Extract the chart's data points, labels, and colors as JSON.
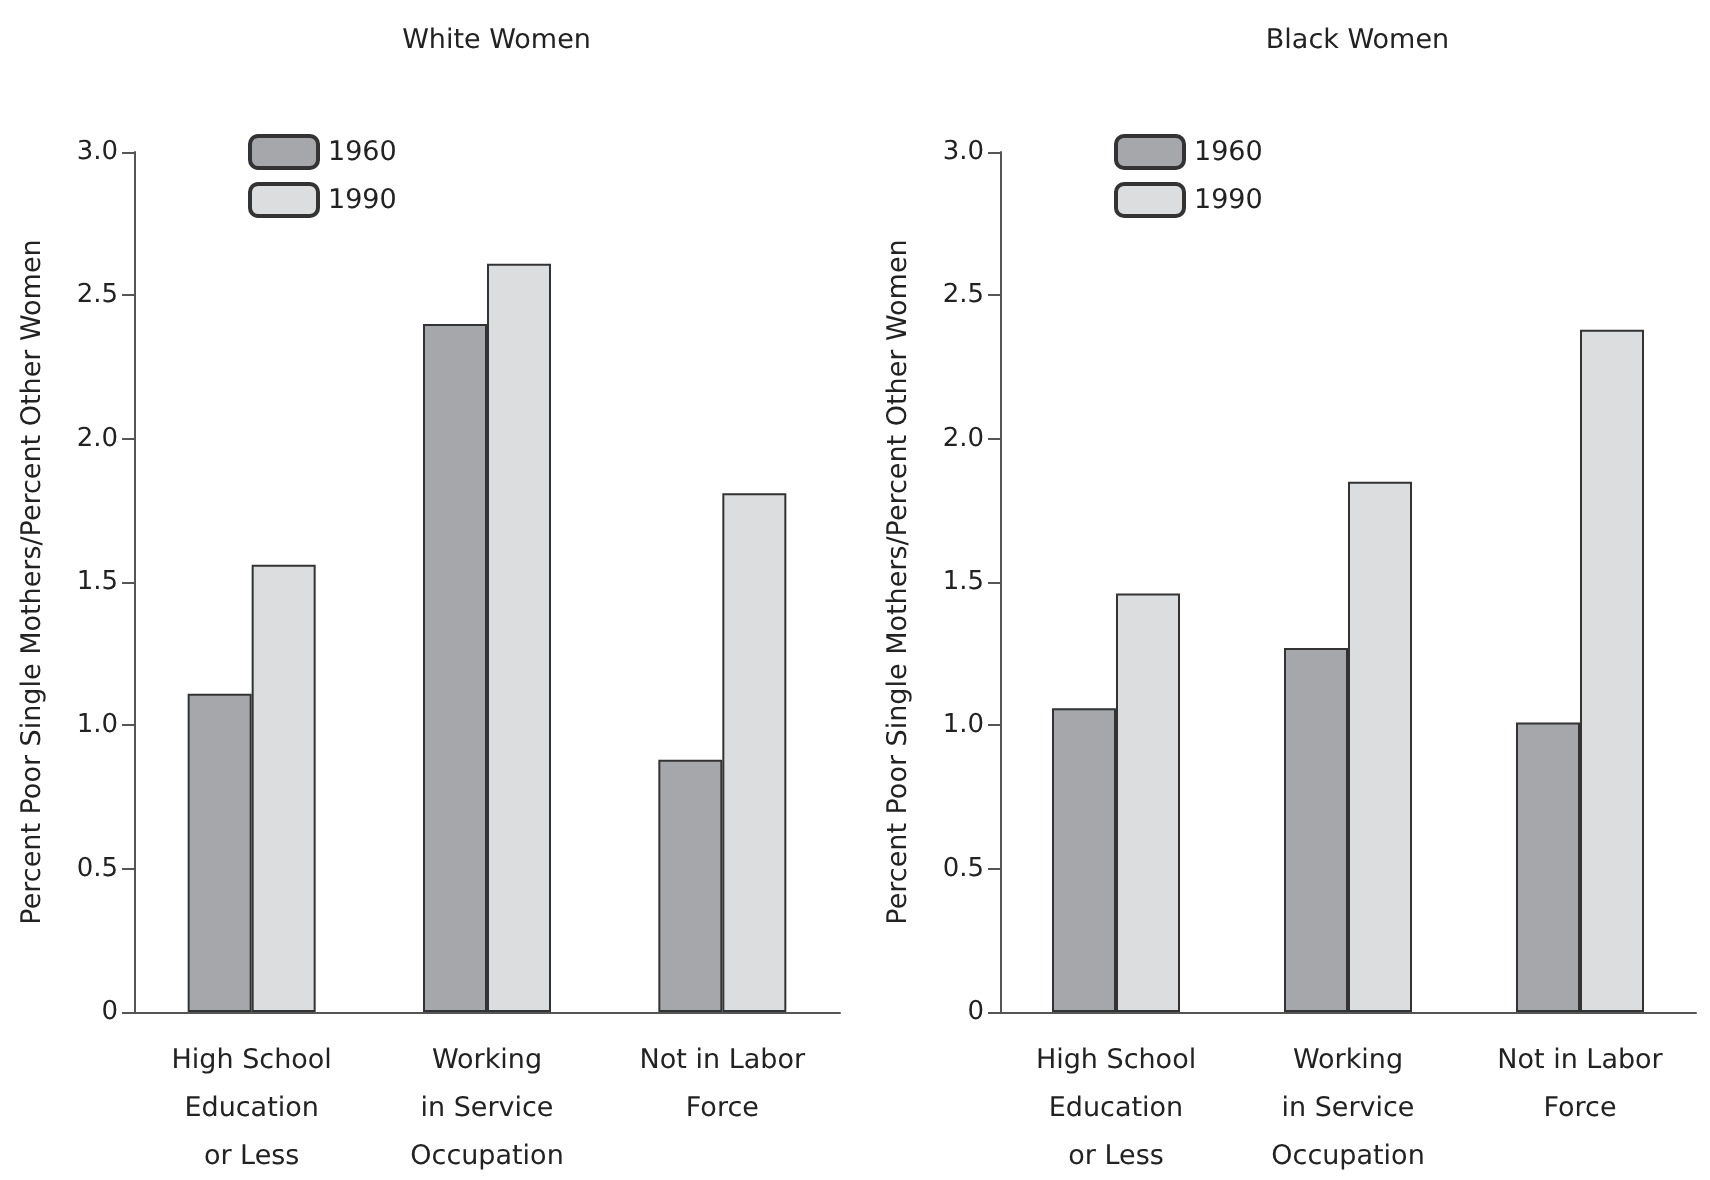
{
  "chart_data": [
    {
      "type": "bar",
      "title": "White Women",
      "ylabel": "Percent Poor Single Mothers/Percent Other Women",
      "categories": [
        "High School\nEducation\nor Less",
        "Working\nin Service\nOccupation",
        "Not in Labor\nForce"
      ],
      "series": [
        {
          "name": "1960",
          "color": "#a6a7ab",
          "values": [
            1.11,
            2.4,
            0.88
          ]
        },
        {
          "name": "1990",
          "color": "#dcdddf",
          "values": [
            1.56,
            2.61,
            1.81
          ]
        }
      ],
      "ylim": [
        0,
        3.0
      ],
      "yticks": [
        {
          "value": 0,
          "label": "0"
        },
        0.5,
        {
          "value": 1,
          "label": "1.0"
        },
        1.5,
        {
          "value": 2,
          "label": "2.0"
        },
        2.5,
        {
          "value": 3,
          "label": "3.0"
        }
      ],
      "grid": false,
      "legend": "top left"
    },
    {
      "type": "bar",
      "title": "Black Women",
      "ylabel": "Percent Poor Single Mothers/Percent Other Women",
      "categories": [
        "High School\nEducation\nor Less",
        "Working\nin Service\nOccupation",
        "Not in Labor\nForce"
      ],
      "series": [
        {
          "name": "1960",
          "color": "#a6a7ab",
          "values": [
            1.06,
            1.27,
            1.01
          ]
        },
        {
          "name": "1990",
          "color": "#dcdddf",
          "values": [
            1.46,
            1.85,
            2.38
          ]
        }
      ],
      "ylim": [
        0,
        3.0
      ],
      "yticks": [
        {
          "value": 0,
          "label": "0"
        },
        0.5,
        {
          "value": 1,
          "label": "1.0"
        },
        1.5,
        {
          "value": 2,
          "label": "2.0"
        },
        2.5,
        {
          "value": 3,
          "label": "3.0"
        }
      ],
      "grid": false,
      "legend": "top left"
    }
  ]
}
